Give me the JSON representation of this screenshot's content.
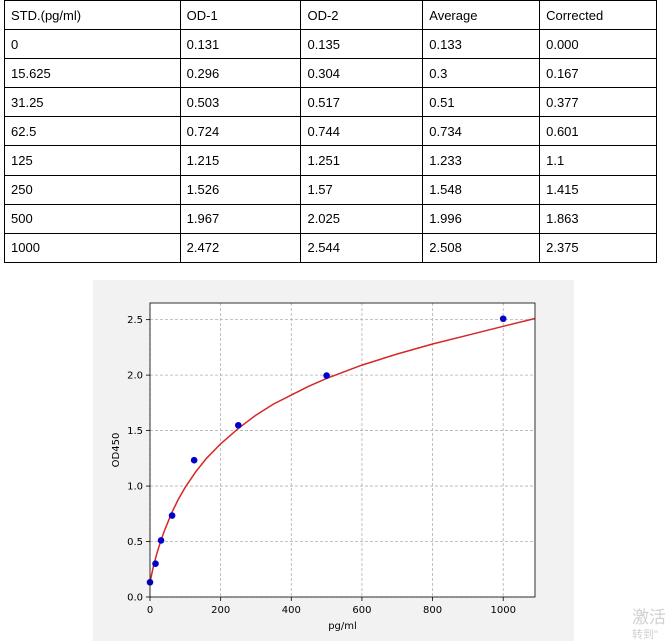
{
  "table": {
    "headers": [
      "STD.(pg/ml)",
      "OD-1",
      "OD-2",
      "Average",
      "Corrected"
    ],
    "rows": [
      [
        "0",
        "0.131",
        "0.135",
        "0.133",
        "0.000"
      ],
      [
        "15.625",
        "0.296",
        "0.304",
        "0.3",
        "0.167"
      ],
      [
        "31.25",
        "0.503",
        "0.517",
        "0.51",
        "0.377"
      ],
      [
        "62.5",
        "0.724",
        "0.744",
        "0.734",
        "0.601"
      ],
      [
        "125",
        "1.215",
        "1.251",
        "1.233",
        "1.1"
      ],
      [
        "250",
        "1.526",
        "1.57",
        "1.548",
        "1.415"
      ],
      [
        "500",
        "1.967",
        "2.025",
        "1.996",
        "1.863"
      ],
      [
        "1000",
        "2.472",
        "2.544",
        "2.508",
        "2.375"
      ]
    ]
  },
  "chart_data": {
    "type": "scatter",
    "title": "",
    "xlabel": "pg/ml",
    "ylabel": "OD450",
    "xlim": [
      0,
      1090
    ],
    "ylim": [
      0,
      2.65
    ],
    "xticks": [
      0,
      200,
      400,
      600,
      800,
      1000
    ],
    "yticks": [
      0.0,
      0.5,
      1.0,
      1.5,
      2.0,
      2.5
    ],
    "grid": true,
    "series": [
      {
        "kind": "points",
        "color": "#0000cc",
        "x": [
          0,
          15.625,
          31.25,
          62.5,
          125,
          250,
          500,
          1000
        ],
        "y": [
          0.133,
          0.3,
          0.51,
          0.734,
          1.233,
          1.548,
          1.996,
          2.508
        ]
      },
      {
        "kind": "fit-curve",
        "color": "#d62728",
        "x": [
          0,
          5,
          10,
          15,
          20,
          30,
          40,
          50,
          60,
          80,
          100,
          130,
          160,
          200,
          250,
          300,
          350,
          400,
          450,
          500,
          600,
          700,
          800,
          900,
          1000,
          1090
        ],
        "y": [
          0.13,
          0.21,
          0.28,
          0.34,
          0.4,
          0.5,
          0.59,
          0.67,
          0.75,
          0.88,
          0.99,
          1.13,
          1.25,
          1.38,
          1.52,
          1.64,
          1.74,
          1.82,
          1.9,
          1.97,
          2.09,
          2.19,
          2.28,
          2.36,
          2.44,
          2.51
        ]
      }
    ]
  },
  "watermark": {
    "line1": "激活",
    "line2": "转到\""
  }
}
